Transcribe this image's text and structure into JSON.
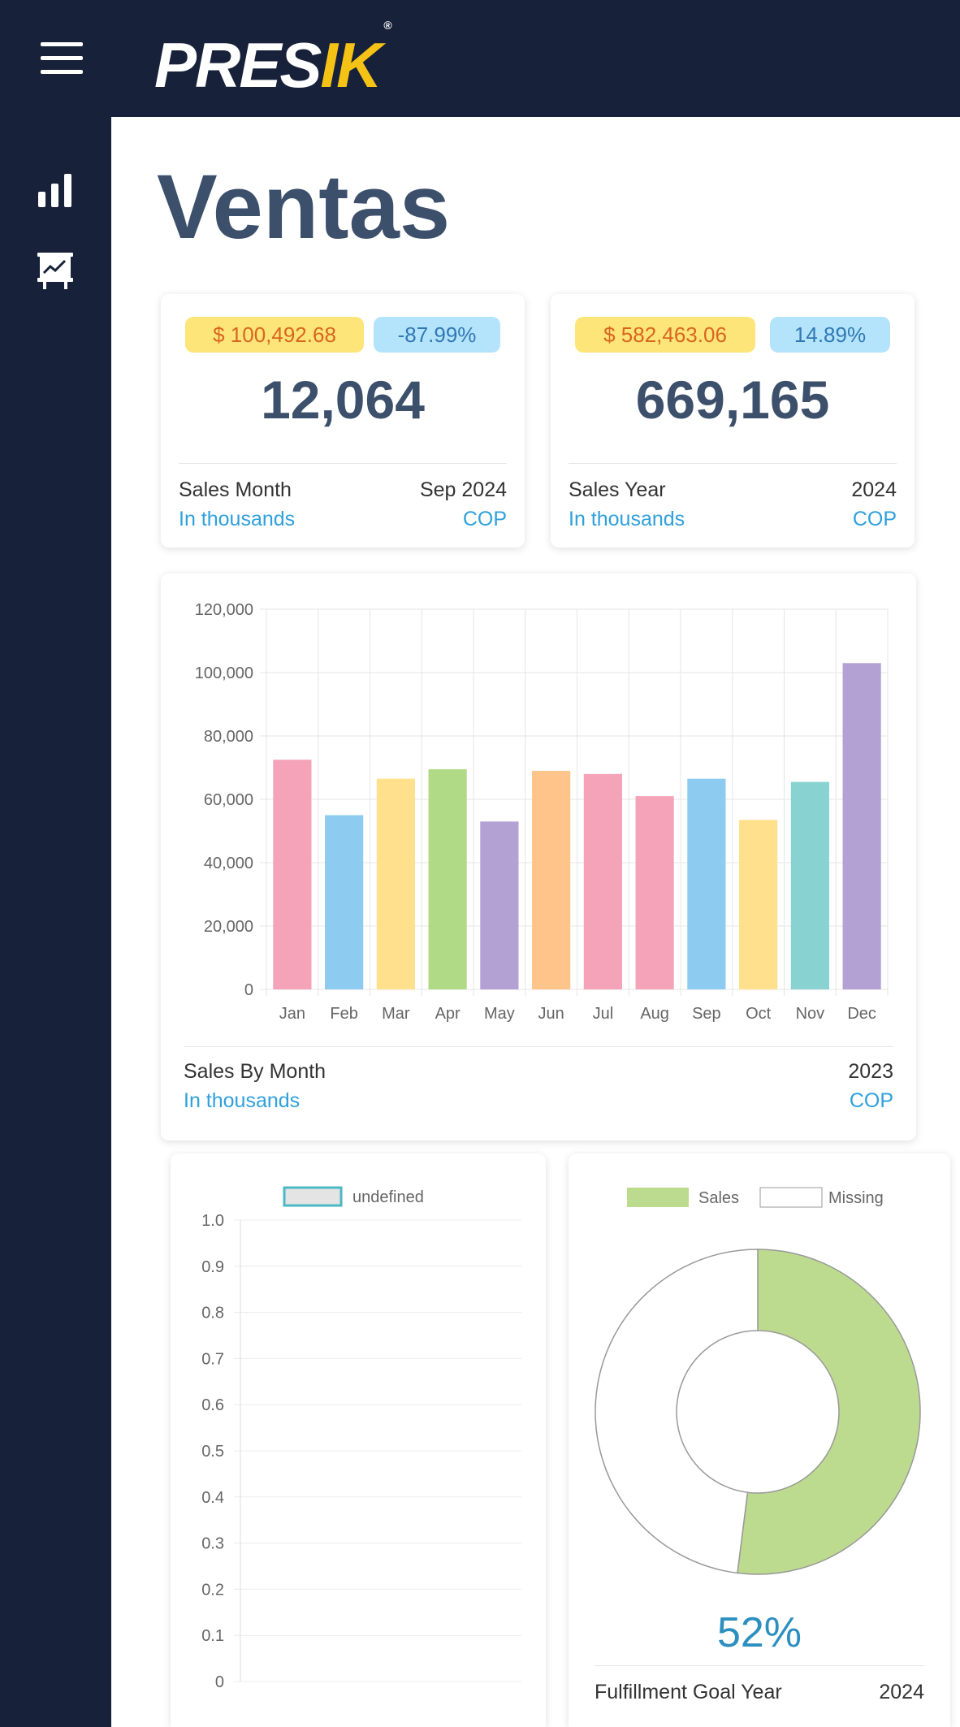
{
  "app": {
    "logo_main": "PRES",
    "logo_accent": "IK",
    "logo_mark": "®"
  },
  "page": {
    "title": "Ventas"
  },
  "colors": {
    "navy": "#18213a",
    "title": "#3c4f6b",
    "accent_yellow": "#f4c315",
    "link": "#2fa0dc"
  },
  "icons": {
    "menu": "hamburger-icon",
    "chart": "bar-chart-icon",
    "presentation": "presentation-chart-icon"
  },
  "cards": [
    {
      "amount": "$ 100,492.68",
      "change": "-87.99%",
      "value": "12,064",
      "label": "Sales Month",
      "period": "Sep 2024",
      "unit": "In thousands",
      "currency": "COP"
    },
    {
      "amount": "$ 582,463.06",
      "change": "14.89%",
      "value": "669,165",
      "label": "Sales Year",
      "period": "2024",
      "unit": "In thousands",
      "currency": "COP"
    }
  ],
  "monthly": {
    "label": "Sales By Month",
    "year": "2023",
    "unit": "In thousands",
    "currency": "COP"
  },
  "goal": {
    "percent": "52%",
    "label": "Fulfillment Goal Year",
    "year": "2024"
  },
  "chart_data": [
    {
      "type": "bar",
      "title": "",
      "categories": [
        "Jan",
        "Feb",
        "Mar",
        "Apr",
        "May",
        "Jun",
        "Jul",
        "Aug",
        "Sep",
        "Oct",
        "Nov",
        "Dec"
      ],
      "values": [
        72500,
        55000,
        66500,
        69500,
        53000,
        69000,
        68000,
        61000,
        66500,
        53500,
        65500,
        103000
      ],
      "colors": [
        "#f5a3b9",
        "#8ecbf1",
        "#ffe08c",
        "#b1da86",
        "#b3a1d4",
        "#ffc48a",
        "#f5a3b9",
        "#f5a3b9",
        "#8ecbf1",
        "#ffe08c",
        "#88d3d1",
        "#b3a1d4"
      ],
      "ylim": [
        0,
        120000
      ],
      "yticks": [
        "0",
        "20,000",
        "40,000",
        "60,000",
        "80,000",
        "100,000",
        "120,000"
      ],
      "xlabel": "",
      "ylabel": "",
      "grid": true
    },
    {
      "type": "line",
      "title": "",
      "legend": [
        "undefined"
      ],
      "series": [
        {
          "name": "undefined",
          "values": []
        }
      ],
      "ylim": [
        0,
        1
      ],
      "yticks": [
        "0",
        "0.1",
        "0.2",
        "0.3",
        "0.4",
        "0.5",
        "0.6",
        "0.7",
        "0.8",
        "0.9",
        "1.0"
      ],
      "grid": true
    },
    {
      "type": "pie",
      "title": "",
      "legend": [
        "Sales",
        "Missing"
      ],
      "labels": [
        "Sales",
        "Missing"
      ],
      "values": [
        52,
        48
      ],
      "colors": [
        "#bcdb8f",
        "#ffffff"
      ]
    }
  ]
}
